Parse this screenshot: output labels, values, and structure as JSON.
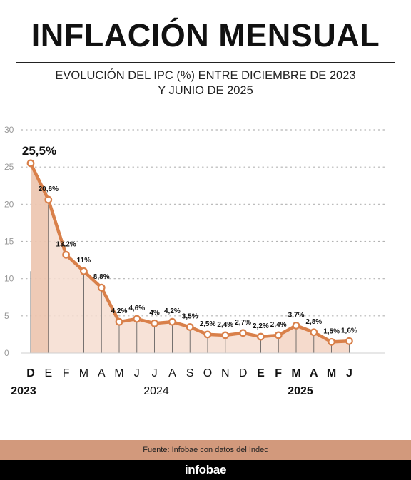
{
  "header": {
    "title": "INFLACIÓN MENSUAL",
    "subtitle_line1": "EVOLUCIÓN DEL IPC (%) ENTRE DICIEMBRE DE 2023",
    "subtitle_line2": "Y JUNIO DE 2025"
  },
  "chart_data": {
    "type": "area",
    "title": "INFLACIÓN MENSUAL",
    "subtitle": "EVOLUCIÓN DEL IPC (%) ENTRE DICIEMBRE DE 2023 Y JUNIO DE 2025",
    "categories": [
      "D",
      "E",
      "F",
      "M",
      "A",
      "M",
      "J",
      "J",
      "A",
      "S",
      "O",
      "N",
      "D",
      "E",
      "F",
      "M",
      "A",
      "M",
      "J"
    ],
    "bold_categories": [
      0,
      13,
      14,
      15,
      16,
      17,
      18
    ],
    "values": [
      25.5,
      20.6,
      13.2,
      11,
      8.8,
      4.2,
      4.6,
      4,
      4.2,
      3.5,
      2.5,
      2.4,
      2.7,
      2.2,
      2.4,
      3.7,
      2.8,
      1.5,
      1.6
    ],
    "labels": [
      "25,5%",
      "20,6%",
      "13,2%",
      "11%",
      "8,8%",
      "4,2%",
      "4,6%",
      "4%",
      "4,2%",
      "3,5%",
      "2,5%",
      "2,4%",
      "2,7%",
      "2,2%",
      "2,4%",
      "3,7%",
      "2,8%",
      "1,5%",
      "1,6%"
    ],
    "years": [
      "2023",
      "2024",
      "2025"
    ],
    "y_ticks": [
      "0",
      "5",
      "10",
      "15",
      "20",
      "25",
      "30"
    ],
    "ylim": [
      0,
      30
    ],
    "grid": true,
    "colors": {
      "line": "#d9804a",
      "fill_light": "#f6ddd0",
      "fill_dark": "#efc8b2",
      "year_shade": "#e7b79a"
    }
  },
  "footer": {
    "source": "Fuente: Infobae con datos del Indec",
    "brand": "infobae",
    "band_color": "#d2997c"
  }
}
